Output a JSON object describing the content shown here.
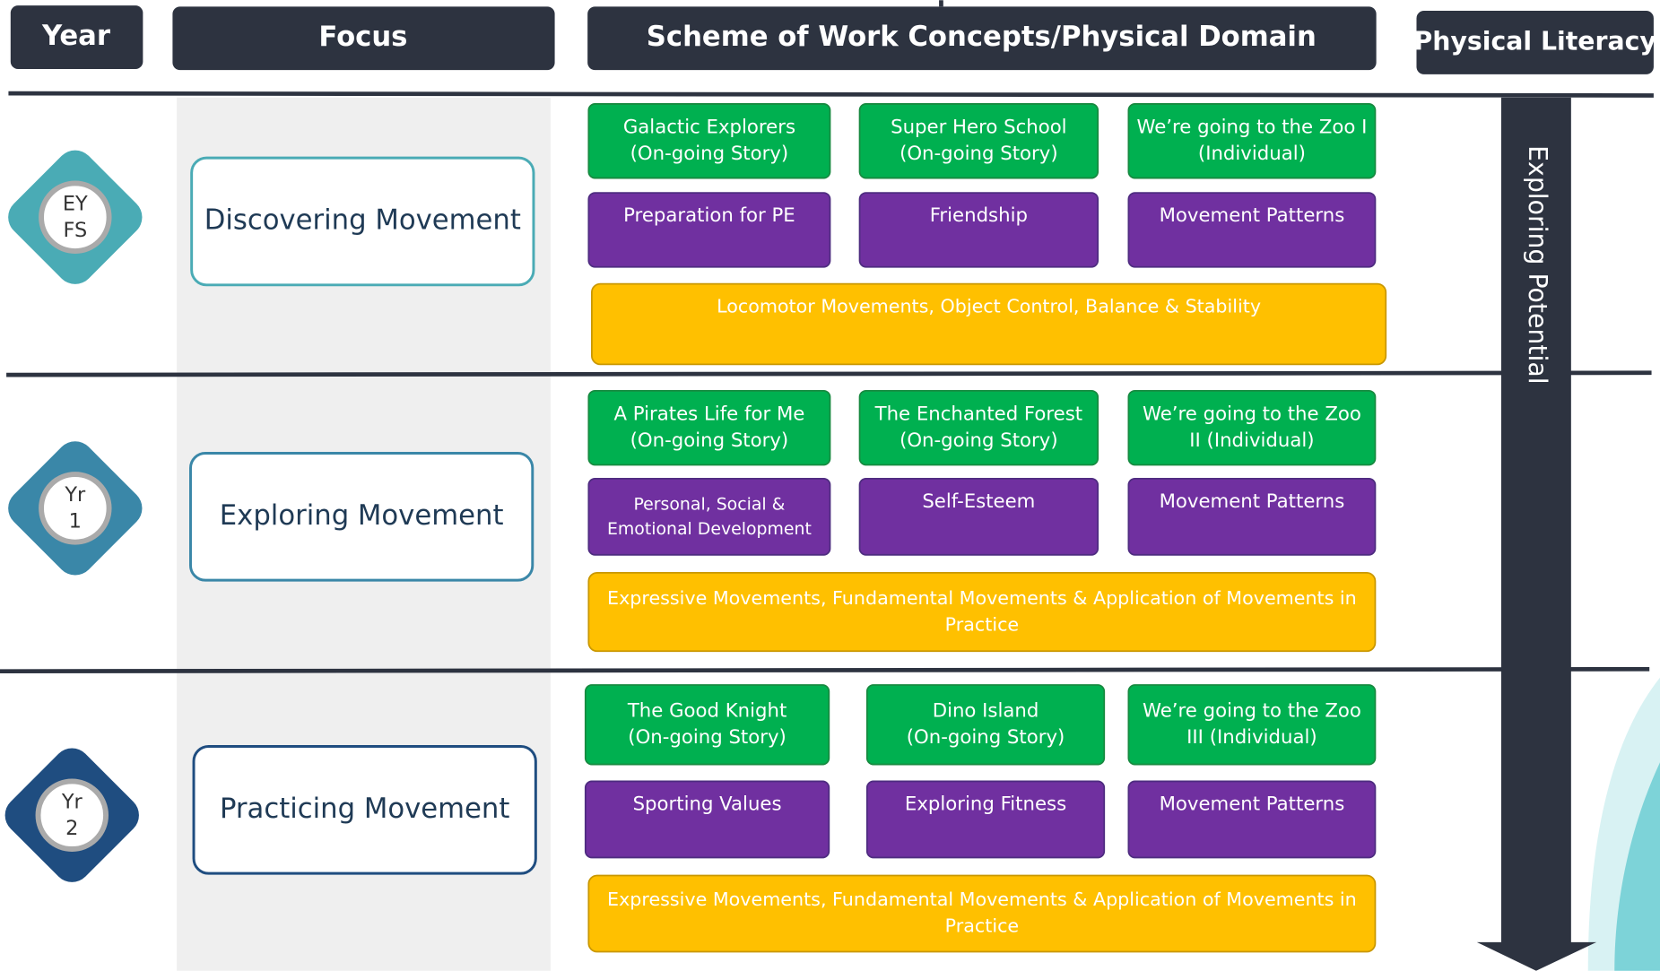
{
  "headers": {
    "year": "Year",
    "focus": "Focus",
    "scheme": "Scheme of Work Concepts/Physical Domain",
    "literacy": "Physical Literacy"
  },
  "side_label": "Exploring Potential",
  "rows": [
    {
      "year": [
        "EY",
        "FS"
      ],
      "focus": "Discovering Movement",
      "stories": [
        [
          "Galactic Explorers",
          "(On-going Story)"
        ],
        [
          "Super Hero School",
          "(On-going Story)"
        ],
        [
          "We’re going to the Zoo I",
          "(Individual)"
        ]
      ],
      "topics": [
        [
          "Preparation for PE"
        ],
        [
          "Friendship"
        ],
        [
          "Movement Patterns"
        ]
      ],
      "domain": [
        "Locomotor Movements, Object Control, Balance & Stability"
      ]
    },
    {
      "year": [
        "Yr",
        "1"
      ],
      "focus": "Exploring Movement",
      "stories": [
        [
          "A Pirates Life for Me",
          "(On-going Story)"
        ],
        [
          "The Enchanted Forest",
          "(On-going Story)"
        ],
        [
          "We’re going to the Zoo",
          "II (Individual)"
        ]
      ],
      "topics": [
        [
          "Personal, Social &",
          "Emotional Development"
        ],
        [
          "Self-Esteem"
        ],
        [
          "Movement Patterns"
        ]
      ],
      "domain": [
        "Expressive Movements, Fundamental Movements & Application of Movements in",
        "Practice"
      ]
    },
    {
      "year": [
        "Yr",
        "2"
      ],
      "focus": "Practicing Movement",
      "stories": [
        [
          "The Good Knight",
          "(On-going Story)"
        ],
        [
          "Dino Island",
          "(On-going Story)"
        ],
        [
          "We’re going to the Zoo",
          "III (Individual)"
        ]
      ],
      "topics": [
        [
          "Sporting Values"
        ],
        [
          "Exploring Fitness"
        ],
        [
          "Movement Patterns"
        ]
      ],
      "domain": [
        "Expressive Movements, Fundamental Movements & Application of Movements in",
        "Practice"
      ]
    }
  ]
}
